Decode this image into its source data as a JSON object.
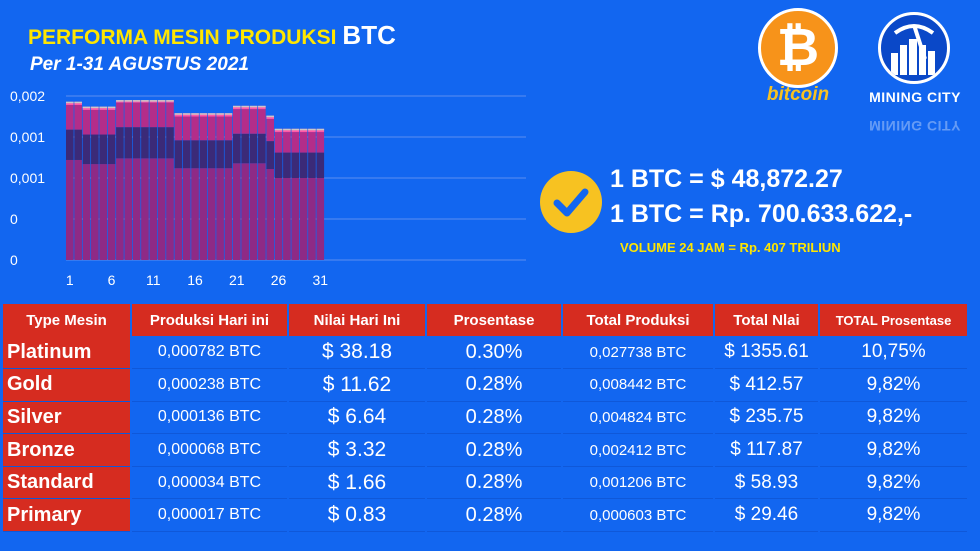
{
  "header": {
    "title_main": "PERFORMA MESIN PRODUKSI",
    "title_btc": "BTC",
    "subtitle": "Per 1-31 AGUSTUS 2021"
  },
  "logos": {
    "bitcoin_symbol": "₿",
    "bitcoin_word": "bitcoin",
    "miningcity_word": "MINING CITY"
  },
  "price": {
    "usd": "1 BTC = $ 48,872.27",
    "idr": "1 BTC = Rp. 700.633.622,-",
    "volume": "VOLUME 24 JAM = Rp. 407 TRILIUN"
  },
  "chart_data": {
    "type": "bar",
    "stacked": true,
    "categories": [
      1,
      2,
      3,
      4,
      5,
      6,
      7,
      8,
      9,
      10,
      11,
      12,
      13,
      14,
      15,
      16,
      17,
      18,
      19,
      20,
      21,
      22,
      23,
      24,
      25,
      26,
      27,
      28,
      29,
      30,
      31
    ],
    "x_tick_labels": [
      "1",
      "6",
      "11",
      "16",
      "21",
      "26",
      "31"
    ],
    "y_tick_labels": [
      "0",
      "0",
      "0,001",
      "0,001",
      "0,002"
    ],
    "ylim": [
      0,
      0.002
    ],
    "grid": true,
    "colors": [
      "#8e2a86",
      "#3b2a78",
      "#b32d8a",
      "#ff5aa8"
    ],
    "totals": [
      0.00193,
      0.00193,
      0.00187,
      0.00187,
      0.00187,
      0.00187,
      0.00195,
      0.00195,
      0.00195,
      0.00195,
      0.00195,
      0.00195,
      0.00195,
      0.00179,
      0.00179,
      0.00179,
      0.00179,
      0.00179,
      0.00179,
      0.00179,
      0.00188,
      0.00188,
      0.00188,
      0.00188,
      0.00176,
      0.0016,
      0.0016,
      0.0016,
      0.0016,
      0.0016,
      0.0016
    ],
    "series": [
      {
        "values": [
          0.00122,
          0.00122,
          0.00117,
          0.00117,
          0.00117,
          0.00117,
          0.00124,
          0.00124,
          0.00124,
          0.00124,
          0.00124,
          0.00124,
          0.00124,
          0.00112,
          0.00112,
          0.00112,
          0.00112,
          0.00112,
          0.00112,
          0.00112,
          0.00118,
          0.00118,
          0.00118,
          0.00118,
          0.00111,
          0.001,
          0.001,
          0.001,
          0.001,
          0.001,
          0.001
        ]
      },
      {
        "values": [
          0.00037,
          0.00037,
          0.00036,
          0.00036,
          0.00036,
          0.00036,
          0.00038,
          0.00038,
          0.00038,
          0.00038,
          0.00038,
          0.00038,
          0.00038,
          0.00034,
          0.00034,
          0.00034,
          0.00034,
          0.00034,
          0.00034,
          0.00034,
          0.00036,
          0.00036,
          0.00036,
          0.00036,
          0.00034,
          0.00031,
          0.00031,
          0.00031,
          0.00031,
          0.00031,
          0.00031
        ]
      },
      {
        "values": [
          0.0003,
          0.0003,
          0.0003,
          0.0003,
          0.0003,
          0.0003,
          0.0003,
          0.0003,
          0.0003,
          0.0003,
          0.0003,
          0.0003,
          0.0003,
          0.00029,
          0.00029,
          0.00029,
          0.00029,
          0.00029,
          0.00029,
          0.00029,
          0.0003,
          0.0003,
          0.0003,
          0.0003,
          0.00027,
          0.00025,
          0.00025,
          0.00025,
          0.00025,
          0.00025,
          0.00025
        ]
      },
      {
        "values": [
          4e-05,
          4e-05,
          4e-05,
          4e-05,
          4e-05,
          4e-05,
          3e-05,
          3e-05,
          3e-05,
          3e-05,
          3e-05,
          3e-05,
          3e-05,
          4e-05,
          4e-05,
          4e-05,
          4e-05,
          4e-05,
          4e-05,
          4e-05,
          4e-05,
          4e-05,
          4e-05,
          4e-05,
          4e-05,
          4e-05,
          4e-05,
          4e-05,
          4e-05,
          4e-05,
          4e-05
        ]
      }
    ]
  },
  "table": {
    "headers": [
      "Type Mesin",
      "Produksi Hari ini",
      "Nilai Hari Ini",
      "Prosentase",
      "Total Produksi",
      "Total Nlai",
      "TOTAL Prosentase"
    ],
    "rows": [
      {
        "type": "Platinum",
        "prod": "0,000782 BTC",
        "nilai": "$ 38.18",
        "pros": "0.30%",
        "total_prod": "0,027738 BTC",
        "total_nilai": "$ 1355.61",
        "total_pros": "10,75%"
      },
      {
        "type": "Gold",
        "prod": "0,000238 BTC",
        "nilai": "$ 11.62",
        "pros": "0.28%",
        "total_prod": "0,008442 BTC",
        "total_nilai": "$ 412.57",
        "total_pros": "9,82%"
      },
      {
        "type": "Silver",
        "prod": "0,000136 BTC",
        "nilai": "$ 6.64",
        "pros": "0.28%",
        "total_prod": "0,004824 BTC",
        "total_nilai": "$  235.75",
        "total_pros": "9,82%"
      },
      {
        "type": "Bronze",
        "prod": "0,000068 BTC",
        "nilai": "$ 3.32",
        "pros": "0.28%",
        "total_prod": "0,002412 BTC",
        "total_nilai": "$ 117.87",
        "total_pros": "9,82%"
      },
      {
        "type": "Standard",
        "prod": "0,000034 BTC",
        "nilai": "$ 1.66",
        "pros": "0.28%",
        "total_prod": "0,001206 BTC",
        "total_nilai": "$ 58.93",
        "total_pros": "9,82%"
      },
      {
        "type": "Primary",
        "prod": "0,000017 BTC",
        "nilai": "$ 0.83",
        "pros": "0.28%",
        "total_prod": "0,000603 BTC",
        "total_nilai": "$ 29.46",
        "total_pros": "9,82%"
      }
    ]
  }
}
